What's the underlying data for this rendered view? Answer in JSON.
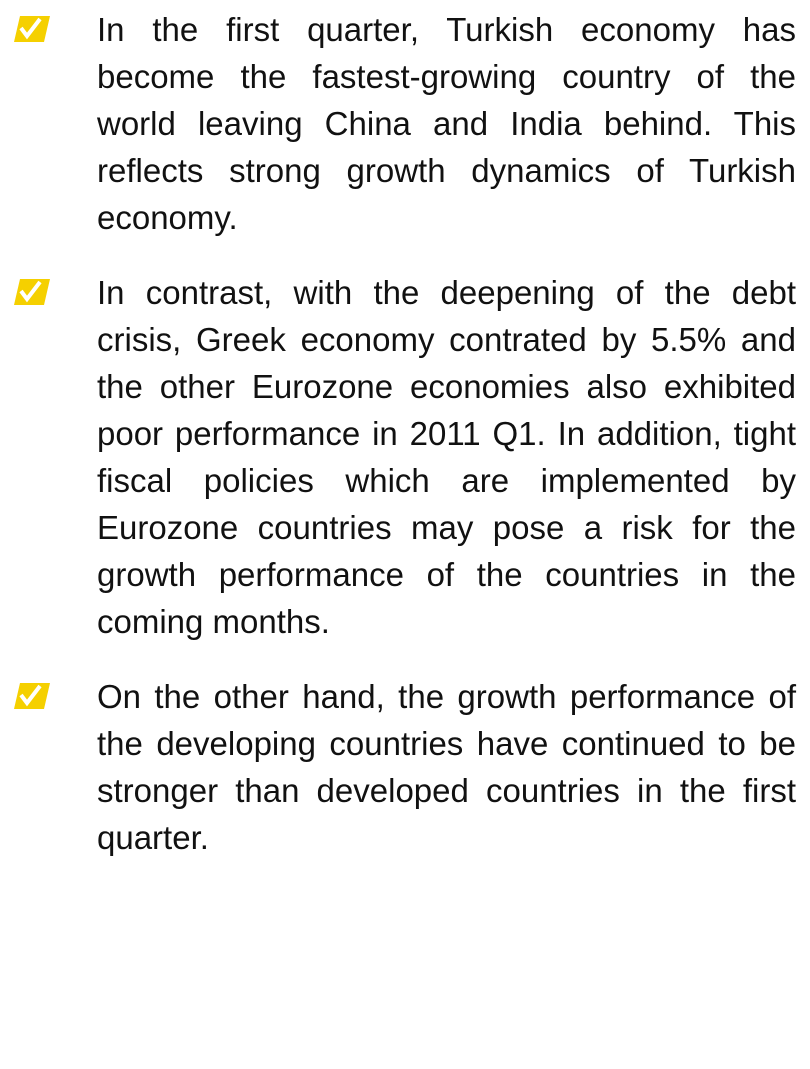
{
  "bullets": [
    {
      "text": "In the first quarter, Turkish economy has become the fastest-growing country of the world leaving China and India behind. This reflects strong growth dynamics of Turkish economy."
    },
    {
      "text": "In contrast, with the deepening of the debt crisis, Greek economy contrated by 5.5% and the other Eurozone economies also exhibited poor performance in 2011 Q1. In addition, tight fiscal policies which are implemented by Eurozone countries may pose a risk for the growth performance of the countries in the coming months."
    },
    {
      "text": "On the other hand, the growth performance of the developing countries have continued to be stronger than developed countries in the first quarter."
    }
  ]
}
